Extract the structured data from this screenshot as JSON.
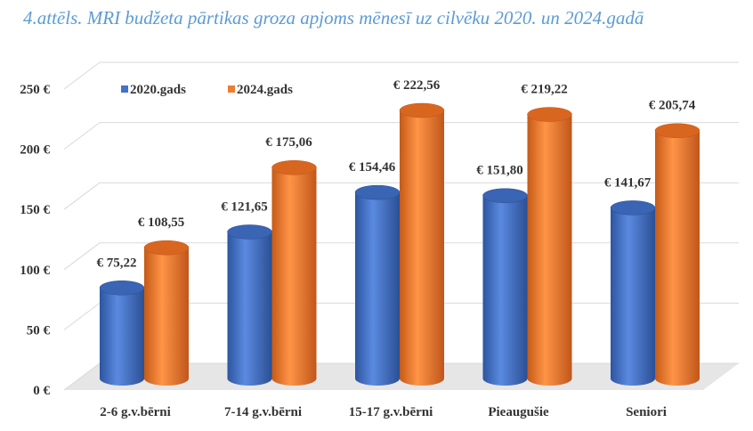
{
  "title": "4.attēls. MRI budžeta pārtikas groza apjoms mēnesī uz cilvēku 2020. un 2024.gadā",
  "chart_data": {
    "type": "bar",
    "title": "4.attēls. MRI budžeta pārtikas groza apjoms mēnesī uz cilvēku 2020. un 2024.gadā",
    "categories": [
      "2-6 g.v.bērni",
      "7-14 g.v.bērni",
      "15-17 g.v.bērni",
      "Pieaugušie",
      "Seniori"
    ],
    "series": [
      {
        "name": "2020.gads",
        "color": "#4472c4",
        "values": [
          75.22,
          121.65,
          154.46,
          151.8,
          141.67
        ],
        "labels": [
          "€ 75,22",
          "€ 121,65",
          "€ 154,46",
          "€ 151,80",
          "€ 141,67"
        ]
      },
      {
        "name": "2024.gads",
        "color": "#ed7d31",
        "values": [
          108.55,
          175.06,
          222.56,
          219.22,
          205.74
        ],
        "labels": [
          "€ 108,55",
          "€ 175,06",
          "€ 222,56",
          "€ 219,22",
          "€ 205,74"
        ]
      }
    ],
    "yticks": [
      0,
      50,
      100,
      150,
      200,
      250
    ],
    "ytick_labels": [
      "0 €",
      "50 €",
      "100 €",
      "150 €",
      "200 €",
      "250 €"
    ],
    "ylim": [
      0,
      250
    ],
    "xlabel": "",
    "ylabel": "",
    "grid": true,
    "legend": "top-left"
  }
}
